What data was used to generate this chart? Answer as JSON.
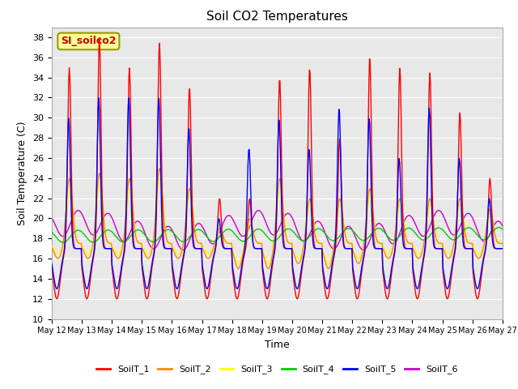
{
  "title": "Soil CO2 Temperatures",
  "xlabel": "Time",
  "ylabel": "Soil Temperature (C)",
  "ylim": [
    10,
    39
  ],
  "yticks": [
    10,
    12,
    14,
    16,
    18,
    20,
    22,
    24,
    26,
    28,
    30,
    32,
    34,
    36,
    38
  ],
  "x_labels": [
    "May 12",
    "May 13",
    "May 14",
    "May 15",
    "May 16",
    "May 17",
    "May 18",
    "May 19",
    "May 20",
    "May 21",
    "May 22",
    "May 23",
    "May 24",
    "May 25",
    "May 26",
    "May 27"
  ],
  "annotation_text": "SI_soilco2",
  "annotation_bg": "#ffff99",
  "annotation_border": "#999900",
  "annotation_text_color": "#cc0000",
  "series_colors": [
    "#ff0000",
    "#ff8800",
    "#ffff00",
    "#00cc00",
    "#0000ff",
    "#cc00cc"
  ],
  "series_labels": [
    "SoilT_1",
    "SoilT_2",
    "SoilT_3",
    "SoilT_4",
    "SoilT_5",
    "SoilT_6"
  ],
  "background_color": "#e8e8e8",
  "grid_color": "#ffffff"
}
